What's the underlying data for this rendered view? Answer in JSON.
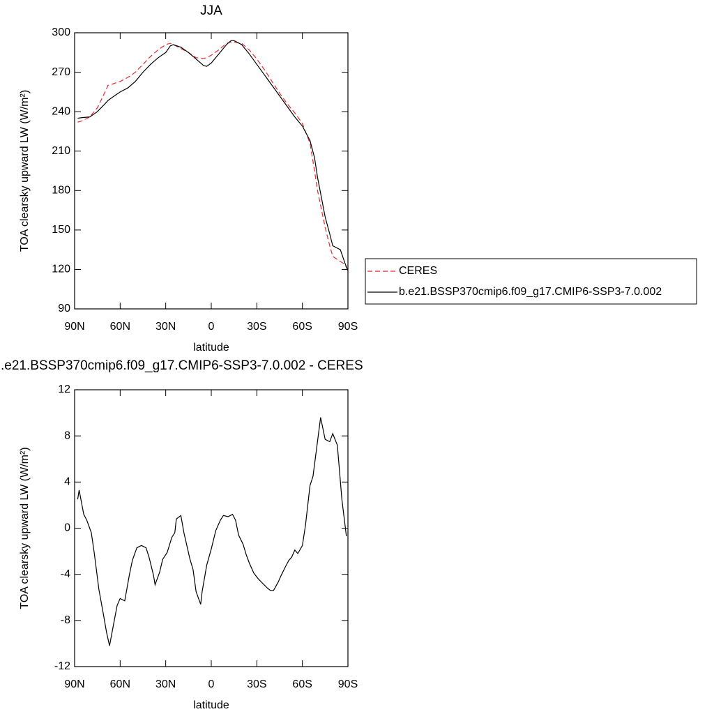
{
  "chart_data": [
    {
      "type": "line",
      "title": "JJA",
      "xlabel": "latitude",
      "ylabel": "TOA clearsky upward LW (W/m²)",
      "x": [
        88,
        85,
        80,
        75,
        70,
        68,
        65,
        60,
        55,
        50,
        45,
        40,
        35,
        30,
        27,
        25,
        20,
        15,
        10,
        5,
        3,
        0,
        -5,
        -10,
        -13,
        -15,
        -20,
        -25,
        -30,
        -35,
        -40,
        -45,
        -50,
        -55,
        -60,
        -65,
        -68,
        -70,
        -75,
        -78,
        -80,
        -85,
        -88,
        -90
      ],
      "series": [
        {
          "name": "CERES",
          "color": "#e8272b",
          "style": "dashed",
          "values": [
            232,
            233,
            236,
            243,
            255,
            260,
            261,
            263,
            266,
            270,
            276,
            282,
            287,
            291,
            292,
            291,
            288,
            285,
            281,
            280.5,
            281,
            283,
            287,
            292,
            293,
            293,
            292,
            287,
            280,
            272,
            263,
            254,
            246,
            239,
            231,
            216,
            195,
            180,
            152,
            138,
            130,
            126,
            124,
            119
          ]
        },
        {
          "name": "b.e21.BSSP370cmip6.f09_g17.CMIP6-SSP3-7.0.002",
          "color": "#000000",
          "style": "solid",
          "values": [
            235,
            235.5,
            236,
            240,
            246,
            248.5,
            251,
            255,
            258,
            263,
            270,
            276,
            281,
            285,
            290,
            291,
            289,
            285,
            280,
            275,
            274.5,
            277,
            284,
            291,
            294,
            294,
            291,
            284,
            276,
            268,
            260,
            252,
            244,
            236,
            229,
            218,
            205,
            190,
            160,
            147,
            138,
            135,
            125,
            119
          ]
        }
      ],
      "xlim": [
        90,
        -90
      ],
      "xticks": [
        {
          "value": 90,
          "label": "90N"
        },
        {
          "value": 60,
          "label": "60N"
        },
        {
          "value": 30,
          "label": "30N"
        },
        0,
        {
          "value": -30,
          "label": "30S"
        },
        {
          "value": -60,
          "label": "60S"
        },
        {
          "value": -90,
          "label": "90S"
        }
      ],
      "ylim": [
        90,
        300
      ],
      "yticks": [
        90,
        120,
        150,
        180,
        210,
        240,
        270,
        300
      ],
      "legend": "right"
    },
    {
      "type": "line",
      "title": ".e21.BSSP370cmip6.f09_g17.CMIP6-SSP3-7.0.002 - CERES",
      "xlabel": "latitude",
      "ylabel": "TOA clearsky upward LW (W/m²)",
      "x": [
        88,
        87,
        84,
        82,
        79,
        77,
        74,
        71,
        69,
        67,
        65,
        62,
        60,
        57,
        54,
        52,
        49,
        46,
        43,
        41,
        38,
        37,
        34,
        32,
        29,
        26,
        24,
        23,
        20,
        18,
        14,
        12,
        10,
        7,
        6,
        3,
        0,
        -3,
        -6,
        -8,
        -11,
        -14,
        -16,
        -18,
        -21,
        -23,
        -25,
        -28,
        -31,
        -34,
        -37,
        -39,
        -41,
        -44,
        -46,
        -49,
        -51,
        -53,
        -55,
        -57,
        -60,
        -62,
        -65,
        -67,
        -72,
        -75,
        -78,
        -80,
        -83,
        -86,
        -89
      ],
      "series": [
        {
          "color": "#000000",
          "style": "solid",
          "values": [
            2.5,
            3.3,
            1.2,
            0.7,
            -0.4,
            -2.2,
            -5.3,
            -7.5,
            -9.0,
            -10.2,
            -8.8,
            -6.7,
            -6.1,
            -6.3,
            -4.1,
            -2.8,
            -1.7,
            -1.5,
            -1.7,
            -2.5,
            -4.1,
            -4.9,
            -3.8,
            -2.7,
            -2.1,
            -0.8,
            -0.4,
            0.8,
            1.1,
            -0.4,
            -2.7,
            -3.6,
            -5.5,
            -6.6,
            -5.5,
            -3.2,
            -1.8,
            -0.2,
            0.7,
            1.1,
            1.0,
            1.2,
            0.7,
            -0.6,
            -1.4,
            -2.3,
            -3.0,
            -3.9,
            -4.4,
            -4.8,
            -5.2,
            -5.4,
            -5.4,
            -4.7,
            -4.1,
            -3.3,
            -2.8,
            -2.5,
            -1.9,
            -2.2,
            -1.5,
            0.2,
            3.7,
            4.5,
            9.6,
            7.7,
            7.5,
            8.2,
            7.2,
            2.5,
            -0.7
          ]
        }
      ],
      "xlim": [
        90,
        -90
      ],
      "xticks": [
        {
          "value": 90,
          "label": "90N"
        },
        {
          "value": 60,
          "label": "60N"
        },
        {
          "value": 30,
          "label": "30N"
        },
        0,
        {
          "value": -30,
          "label": "30S"
        },
        {
          "value": -60,
          "label": "60S"
        },
        {
          "value": -90,
          "label": "90S"
        }
      ],
      "ylim": [
        -12,
        12
      ],
      "yticks": [
        -12,
        -8,
        -4,
        0,
        4,
        8,
        12
      ]
    }
  ]
}
